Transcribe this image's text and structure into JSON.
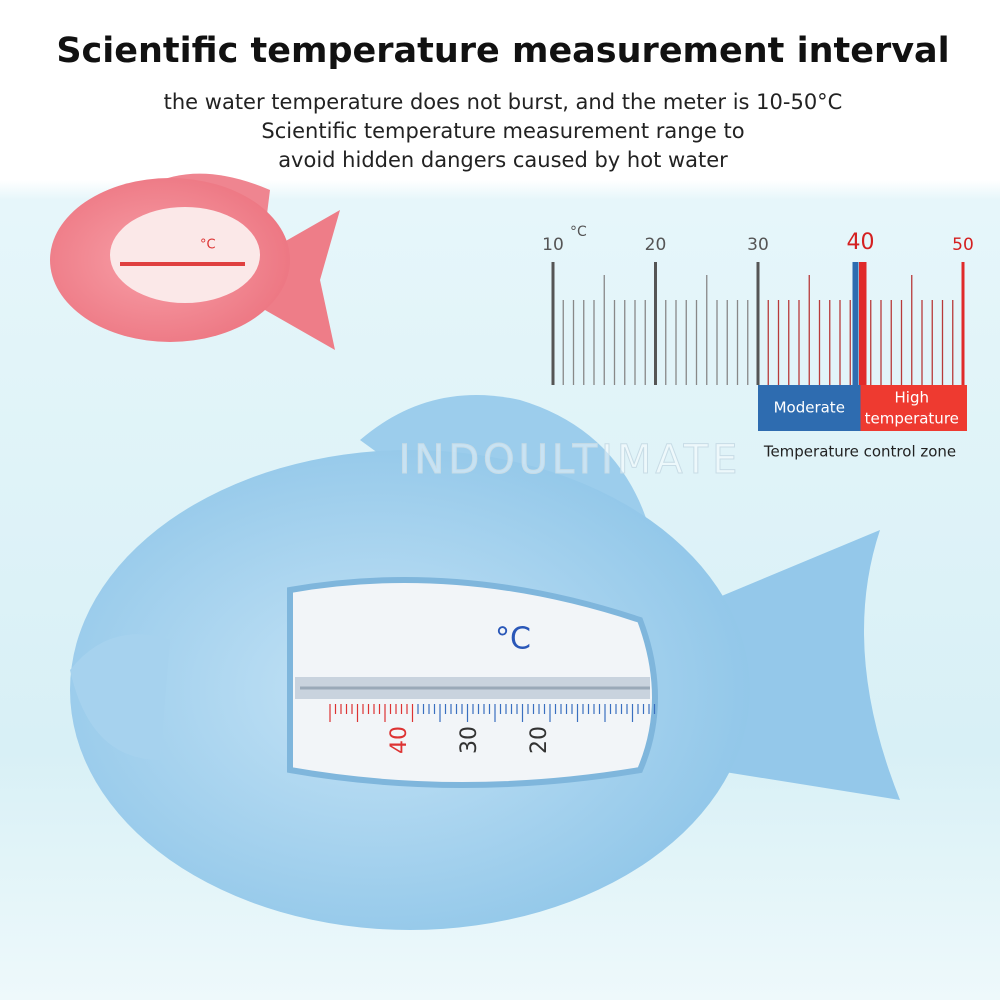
{
  "header": {
    "title": "Scientific temperature measurement interval",
    "subtitle": [
      "the water temperature does not burst, and the meter is 10-50°C",
      "Scientific temperature measurement range to",
      "avoid hidden dangers caused by hot water"
    ]
  },
  "scale": {
    "unit": "°C",
    "labels": [
      10,
      20,
      30,
      40,
      50
    ],
    "zones": [
      [
        "Moderate"
      ],
      [
        "High",
        "temperature"
      ]
    ],
    "caption": "Temperature control zone"
  },
  "thermometer": {
    "unit": "°C",
    "labels": [
      40,
      30,
      20
    ]
  },
  "watermark": "INDOULTIMATE"
}
